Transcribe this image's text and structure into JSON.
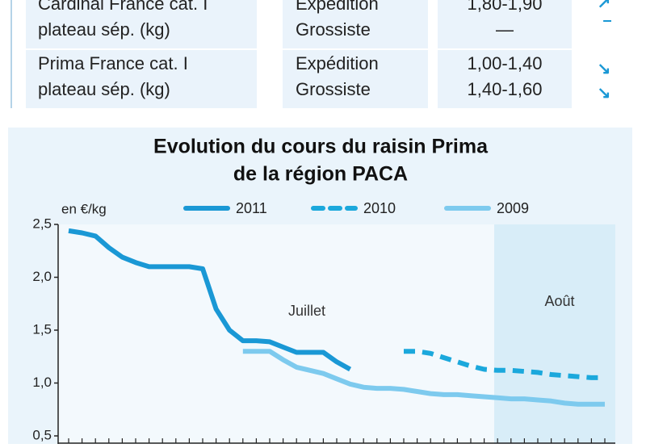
{
  "table": {
    "rows": [
      [
        [
          "Cardinal France cat. I",
          "plateau sép. (kg)"
        ],
        [
          "Expédition",
          "Grossiste"
        ],
        [
          "1,80-1,90",
          "—"
        ]
      ],
      [
        [
          "Prima France cat. I",
          "plateau sép. (kg)"
        ],
        [
          "Expédition",
          "Grossiste"
        ],
        [
          "1,00-1,40",
          "1,40-1,60"
        ]
      ]
    ]
  },
  "chart_data": {
    "type": "line",
    "title": [
      "Evolution du cours du raisin Prima",
      "de la région PACA"
    ],
    "y_label": "en €/kg",
    "annotations": [
      "Juillet",
      "Août"
    ],
    "categories": [
      null,
      null,
      null,
      null,
      null,
      null,
      null,
      null,
      null,
      null,
      null,
      null,
      null,
      null,
      null,
      null,
      null,
      null,
      null,
      null,
      null,
      null,
      null,
      null,
      null,
      null,
      null,
      null,
      null,
      null,
      null,
      null,
      null,
      null,
      null,
      null,
      null,
      null,
      null,
      null,
      null
    ],
    "series": [
      {
        "name": "2011",
        "color": "#1a98d5",
        "dash": false,
        "values": [
          2.44,
          2.42,
          2.39,
          2.28,
          2.19,
          2.14,
          2.1,
          2.1,
          2.1,
          2.1,
          2.08,
          1.7,
          1.5,
          1.4,
          1.4,
          1.39,
          1.34,
          1.29,
          1.29,
          1.29,
          1.2,
          1.13,
          null,
          null,
          null,
          null,
          null,
          null,
          null,
          null,
          null,
          null,
          null,
          null,
          null,
          null,
          null,
          null,
          null,
          null,
          null
        ]
      },
      {
        "name": "2010",
        "color": "#1ba8dc",
        "dash": true,
        "values": [
          null,
          null,
          null,
          null,
          null,
          null,
          null,
          null,
          null,
          null,
          null,
          null,
          null,
          null,
          null,
          null,
          null,
          null,
          null,
          null,
          null,
          null,
          null,
          null,
          null,
          1.3,
          1.3,
          1.28,
          1.24,
          1.2,
          1.16,
          1.13,
          1.12,
          1.12,
          1.11,
          1.1,
          1.08,
          1.07,
          1.06,
          1.05,
          1.05
        ]
      },
      {
        "name": "2009",
        "color": "#7dcaee",
        "dash": false,
        "values": [
          null,
          null,
          null,
          null,
          null,
          null,
          null,
          null,
          null,
          null,
          null,
          null,
          null,
          1.3,
          1.3,
          1.3,
          1.22,
          1.15,
          1.12,
          1.09,
          1.04,
          0.99,
          0.96,
          0.95,
          0.95,
          0.94,
          0.92,
          0.9,
          0.89,
          0.89,
          0.88,
          0.87,
          0.86,
          0.85,
          0.85,
          0.84,
          0.83,
          0.81,
          0.8,
          0.8,
          0.8
        ]
      }
    ],
    "ylim": [
      0.5,
      2.5
    ],
    "yticks": [
      {
        "value": 0.5,
        "label": "0,5"
      },
      {
        "value": 1.0,
        "label": "1,0"
      },
      {
        "value": 1.5,
        "label": "1,5"
      },
      {
        "value": 2.0,
        "label": "2,0"
      },
      {
        "value": 2.5,
        "label": "2,5"
      }
    ],
    "grid": false
  }
}
